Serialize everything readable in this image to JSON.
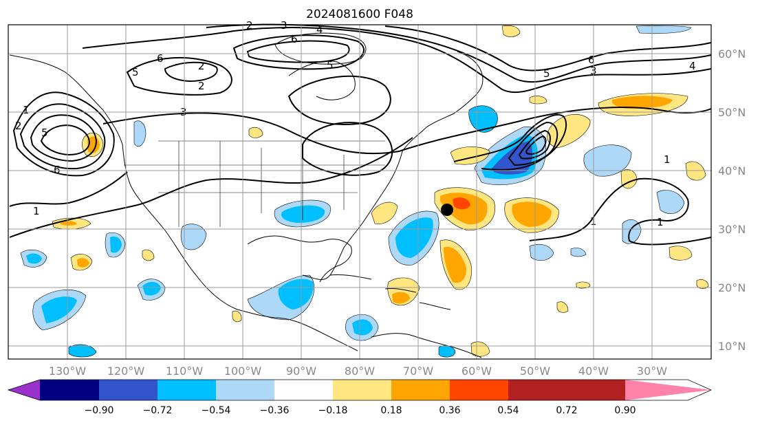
{
  "title": "2024081600 F048",
  "lon_labels": [
    "130°W",
    "120°W",
    "110°W",
    "100°W",
    "90°W",
    "80°W",
    "70°W",
    "60°W",
    "50°W",
    "40°W",
    "30°W"
  ],
  "lat_labels": [
    "60°N",
    "50°N",
    "40°N",
    "30°N",
    "20°N",
    "10°N"
  ],
  "colorbar": {
    "tick_labels": [
      "−0.90",
      "−0.72",
      "−0.54",
      "−0.36",
      "−0.18",
      "0.18",
      "0.36",
      "0.54",
      "0.72",
      "0.90"
    ],
    "colors": [
      "#9932cc",
      "#000080",
      "#3355cc",
      "#00bfff",
      "#add8f8",
      "#ffffff",
      "#ffe680",
      "#ffa500",
      "#ff4500",
      "#b22222",
      "#ff82ab"
    ]
  },
  "contour_labels": [
    "1",
    "1",
    "1",
    "1",
    "1",
    "2",
    "2",
    "2",
    "2",
    "3",
    "3",
    "3",
    "4",
    "4",
    "5",
    "5",
    "5",
    "5",
    "6",
    "6",
    "6",
    "6"
  ],
  "marker": {
    "shape": "filled-circle",
    "color": "#000000"
  },
  "colors": {
    "neg_strong": "#3355cc",
    "neg_mid": "#00bfff",
    "neg_weak": "#add8f8",
    "pos_weak": "#ffe680",
    "pos_mid": "#ffa500",
    "pos_strong": "#ff4500"
  }
}
